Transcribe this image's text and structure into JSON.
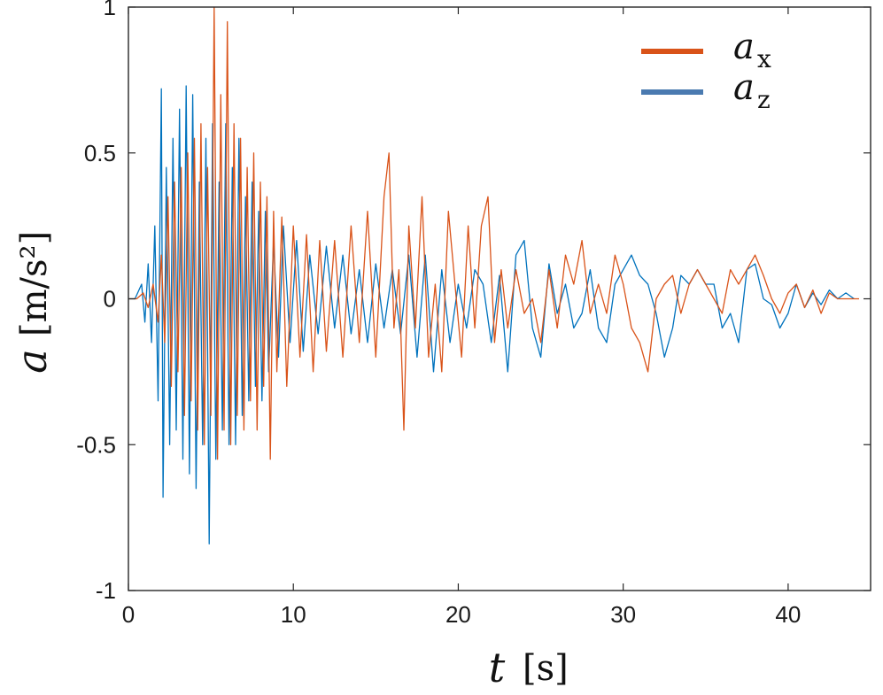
{
  "chart_data": {
    "type": "line",
    "title": "",
    "xlabel": {
      "symbol": "t",
      "unit": "[s]"
    },
    "ylabel": {
      "symbol": "a",
      "unit": "[m/s²]"
    },
    "xlim": [
      0,
      45
    ],
    "ylim": [
      -1,
      1
    ],
    "xticks": [
      0,
      10,
      20,
      30,
      40
    ],
    "yticks": [
      -1,
      -0.5,
      0,
      0.5,
      1
    ],
    "xtick_labels": [
      "0",
      "10",
      "20",
      "30",
      "40"
    ],
    "ytick_labels": [
      "-1",
      "-0.5",
      "0",
      "0.5",
      "1"
    ],
    "grid": false,
    "legend": {
      "placement": "top-right",
      "entries": [
        {
          "series": "ax",
          "symbol": "a",
          "subscript": "x"
        },
        {
          "series": "az",
          "symbol": "a",
          "subscript": "z"
        }
      ]
    },
    "series": [
      {
        "name": "ax",
        "color": "#D95319",
        "x": [
          0,
          0.5,
          0.9,
          1.2,
          1.5,
          1.8,
          2.0,
          2.2,
          2.4,
          2.6,
          2.8,
          3.0,
          3.2,
          3.4,
          3.6,
          3.8,
          4.0,
          4.2,
          4.4,
          4.6,
          4.8,
          5.0,
          5.2,
          5.4,
          5.6,
          5.8,
          6.0,
          6.2,
          6.4,
          6.6,
          6.8,
          7.0,
          7.2,
          7.4,
          7.6,
          7.8,
          8.0,
          8.2,
          8.4,
          8.6,
          8.8,
          9.0,
          9.3,
          9.6,
          10.0,
          10.4,
          10.8,
          11.2,
          11.6,
          12.0,
          12.5,
          13.0,
          13.5,
          14.0,
          14.5,
          15.0,
          15.5,
          15.8,
          16.1,
          16.4,
          16.7,
          17.0,
          17.4,
          17.8,
          18.2,
          18.6,
          19.0,
          19.4,
          19.8,
          20.2,
          20.6,
          21.0,
          21.4,
          21.8,
          22.2,
          22.6,
          23.0,
          23.5,
          24.0,
          24.5,
          25.0,
          25.5,
          26.0,
          26.5,
          27.0,
          27.5,
          28.0,
          28.5,
          29.0,
          29.5,
          30.0,
          30.5,
          31.0,
          31.5,
          32.0,
          32.5,
          33.0,
          33.5,
          34.0,
          34.5,
          35.0,
          35.5,
          36.0,
          36.5,
          37.0,
          37.5,
          38.0,
          38.5,
          39.0,
          39.5,
          40.0,
          40.5,
          41.0,
          41.5,
          42.0,
          42.5,
          43.0,
          43.5,
          44.0,
          44.3
        ],
        "values": [
          0,
          0,
          0.02,
          -0.03,
          0.05,
          -0.08,
          0.15,
          -0.15,
          0.35,
          -0.3,
          0.4,
          -0.25,
          0.45,
          -0.4,
          0.5,
          -0.35,
          0.55,
          -0.45,
          0.6,
          -0.5,
          0.45,
          -0.4,
          1.0,
          -0.55,
          0.7,
          -0.45,
          0.95,
          -0.5,
          0.6,
          -0.4,
          0.55,
          -0.45,
          0.45,
          -0.35,
          0.5,
          -0.45,
          0.4,
          -0.3,
          0.35,
          -0.55,
          0.3,
          -0.25,
          0.28,
          -0.3,
          0.25,
          -0.2,
          0.22,
          -0.25,
          0.2,
          -0.18,
          0.2,
          -0.2,
          0.25,
          -0.15,
          0.3,
          -0.2,
          0.35,
          0.5,
          -0.1,
          0.1,
          -0.45,
          0.25,
          -0.1,
          0.35,
          -0.2,
          0.05,
          -0.25,
          0.3,
          0.05,
          -0.2,
          0.25,
          -0.1,
          0.25,
          0.35,
          -0.15,
          0.1,
          -0.1,
          0.1,
          -0.05,
          0.0,
          -0.15,
          0.1,
          -0.1,
          0.15,
          0.05,
          0.2,
          -0.05,
          0.05,
          -0.05,
          0.15,
          0.05,
          -0.1,
          -0.15,
          -0.25,
          0.0,
          0.05,
          0.08,
          -0.05,
          0.05,
          0.1,
          0.05,
          0.0,
          -0.05,
          0.1,
          0.05,
          0.1,
          0.15,
          0.08,
          0.0,
          -0.05,
          0.02,
          0.05,
          -0.03,
          0.03,
          -0.05,
          0.02,
          0.0,
          0.0,
          0.0,
          0.0
        ]
      },
      {
        "name": "az",
        "color": "#0072BD",
        "x": [
          0,
          0.4,
          0.8,
          1.0,
          1.2,
          1.4,
          1.6,
          1.8,
          2.0,
          2.1,
          2.3,
          2.5,
          2.7,
          2.9,
          3.1,
          3.3,
          3.5,
          3.7,
          3.9,
          4.1,
          4.3,
          4.5,
          4.7,
          4.9,
          5.1,
          5.3,
          5.5,
          5.7,
          5.9,
          6.1,
          6.3,
          6.5,
          6.7,
          6.9,
          7.1,
          7.3,
          7.5,
          7.7,
          7.9,
          8.1,
          8.3,
          8.5,
          8.8,
          9.1,
          9.4,
          9.8,
          10.2,
          10.6,
          11.0,
          11.5,
          12.0,
          12.5,
          13.0,
          13.5,
          14.0,
          14.5,
          15.0,
          15.5,
          16.0,
          16.5,
          17.0,
          17.5,
          18.0,
          18.5,
          19.0,
          19.5,
          20.0,
          20.5,
          21.0,
          21.5,
          22.0,
          22.5,
          23.0,
          23.5,
          24.0,
          24.5,
          25.0,
          25.5,
          26.0,
          26.5,
          27.0,
          27.5,
          28.0,
          28.5,
          29.0,
          29.5,
          30.0,
          30.5,
          31.0,
          31.5,
          32.0,
          32.5,
          33.0,
          33.5,
          34.0,
          34.5,
          35.0,
          35.5,
          36.0,
          36.5,
          37.0,
          37.5,
          38.0,
          38.5,
          39.0,
          39.5,
          40.0,
          40.5,
          41.0,
          41.5,
          42.0,
          42.5,
          43.0,
          43.5,
          44.0
        ],
        "values": [
          0,
          0,
          0.05,
          -0.08,
          0.12,
          -0.15,
          0.25,
          -0.35,
          0.72,
          -0.68,
          0.45,
          -0.5,
          0.55,
          -0.45,
          0.65,
          -0.55,
          0.73,
          -0.6,
          0.7,
          -0.65,
          0.4,
          -0.5,
          0.55,
          -0.84,
          0.6,
          -0.55,
          0.4,
          -0.45,
          0.6,
          -0.5,
          0.45,
          -0.5,
          0.55,
          -0.4,
          0.35,
          -0.35,
          0.4,
          -0.3,
          0.3,
          -0.35,
          0.3,
          -0.25,
          0.2,
          -0.2,
          0.25,
          -0.15,
          0.2,
          -0.18,
          0.15,
          -0.12,
          0.18,
          -0.1,
          0.15,
          -0.12,
          0.1,
          -0.15,
          0.12,
          -0.1,
          0.1,
          -0.12,
          0.15,
          -0.2,
          0.15,
          -0.25,
          0.1,
          -0.15,
          0.05,
          -0.1,
          0.1,
          0.05,
          -0.15,
          0.08,
          -0.25,
          0.15,
          0.2,
          -0.1,
          -0.2,
          0.12,
          -0.05,
          0.05,
          -0.1,
          -0.05,
          0.1,
          -0.1,
          -0.15,
          0.05,
          0.1,
          0.15,
          0.08,
          0.05,
          -0.05,
          -0.2,
          -0.1,
          0.08,
          0.05,
          0.1,
          0.05,
          0.05,
          -0.1,
          -0.05,
          -0.15,
          0.1,
          0.12,
          0.0,
          -0.02,
          -0.1,
          -0.05,
          0.05,
          -0.03,
          0.02,
          -0.02,
          0.03,
          0.0,
          0.02,
          0.0
        ]
      }
    ]
  }
}
